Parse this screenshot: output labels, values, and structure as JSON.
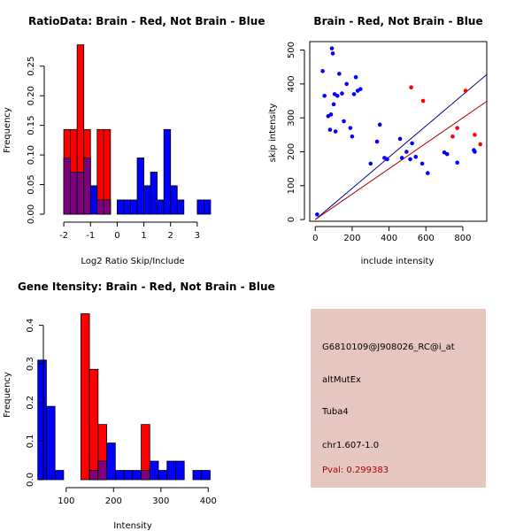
{
  "chart_data": [
    {
      "id": "ratio",
      "type": "histogram",
      "title": "RatioData: Brain - Red, Not Brain - Blue",
      "xlabel": "Log2 Ratio Skip/Include",
      "ylabel": "Frequency",
      "xlim": [
        -2.5,
        3.8
      ],
      "ylim": [
        0,
        0.29
      ],
      "xticks": [
        -2,
        -1,
        0,
        1,
        2,
        3
      ],
      "yticks": [
        0.0,
        0.05,
        0.1,
        0.15,
        0.2,
        0.25
      ],
      "ytick_labels": [
        "0.00",
        "0.05",
        "0.10",
        "0.15",
        "0.20",
        "0.25"
      ],
      "bin_width": 0.25,
      "series": [
        {
          "name": "Not Brain",
          "color": "#0000ff",
          "bins": [
            [
              -2.0,
              0.095
            ],
            [
              -1.75,
              0.071
            ],
            [
              -1.5,
              0.071
            ],
            [
              -1.25,
              0.095
            ],
            [
              -1.0,
              0.048
            ],
            [
              -0.75,
              0.024
            ],
            [
              -0.5,
              0.024
            ],
            [
              0.0,
              0.024
            ],
            [
              0.25,
              0.024
            ],
            [
              0.5,
              0.024
            ],
            [
              0.75,
              0.095
            ],
            [
              1.0,
              0.048
            ],
            [
              1.25,
              0.071
            ],
            [
              1.5,
              0.024
            ],
            [
              1.75,
              0.143
            ],
            [
              2.0,
              0.048
            ],
            [
              2.25,
              0.024
            ],
            [
              3.0,
              0.024
            ],
            [
              3.25,
              0.024
            ]
          ]
        },
        {
          "name": "Brain",
          "color": "#ff0000",
          "bins": [
            [
              -2.0,
              0.143
            ],
            [
              -1.75,
              0.143
            ],
            [
              -1.5,
              0.286
            ],
            [
              -1.25,
              0.143
            ],
            [
              -0.75,
              0.143
            ],
            [
              -0.5,
              0.143
            ]
          ]
        }
      ]
    },
    {
      "id": "scatter",
      "type": "scatter",
      "title": "Brain - Red, Not Brain - Blue",
      "xlabel": "include intensity",
      "ylabel": "skip intensity",
      "xlim": [
        -30,
        930
      ],
      "ylim": [
        -5,
        525
      ],
      "xticks": [
        0,
        200,
        400,
        600,
        800
      ],
      "yticks": [
        0,
        100,
        200,
        300,
        400,
        500
      ],
      "series": [
        {
          "name": "Not Brain",
          "color": "#0000ff",
          "points": [
            [
              10,
              15
            ],
            [
              40,
              438
            ],
            [
              50,
              365
            ],
            [
              70,
              305
            ],
            [
              80,
              265
            ],
            [
              85,
              310
            ],
            [
              90,
              505
            ],
            [
              95,
              490
            ],
            [
              100,
              340
            ],
            [
              105,
              370
            ],
            [
              110,
              260
            ],
            [
              120,
              365
            ],
            [
              130,
              430
            ],
            [
              145,
              372
            ],
            [
              155,
              290
            ],
            [
              170,
              400
            ],
            [
              190,
              270
            ],
            [
              200,
              245
            ],
            [
              210,
              370
            ],
            [
              220,
              420
            ],
            [
              230,
              380
            ],
            [
              245,
              385
            ],
            [
              300,
              165
            ],
            [
              335,
              230
            ],
            [
              350,
              280
            ],
            [
              375,
              182
            ],
            [
              390,
              178
            ],
            [
              460,
              238
            ],
            [
              470,
              182
            ],
            [
              495,
              200
            ],
            [
              515,
              178
            ],
            [
              525,
              225
            ],
            [
              545,
              185
            ],
            [
              580,
              165
            ],
            [
              610,
              137
            ],
            [
              700,
              198
            ],
            [
              715,
              193
            ],
            [
              770,
              168
            ],
            [
              860,
              205
            ],
            [
              865,
              200
            ]
          ]
        },
        {
          "name": "Brain",
          "color": "#ff0000",
          "points": [
            [
              520,
              390
            ],
            [
              585,
              350
            ],
            [
              745,
              245
            ],
            [
              770,
              270
            ],
            [
              815,
              380
            ],
            [
              865,
              250
            ],
            [
              895,
              222
            ]
          ]
        }
      ],
      "lines": [
        {
          "name": "Not Brain fit",
          "color": "#00008b",
          "slope": 0.46
        },
        {
          "name": "Brain fit",
          "color": "#b00000",
          "slope": 0.375
        }
      ]
    },
    {
      "id": "intensity",
      "type": "histogram",
      "title": "Gene Itensity: Brain - Red, Not Brain - Blue",
      "xlabel": "Intensity",
      "ylabel": "Frequency",
      "xlim": [
        35,
        420
      ],
      "ylim": [
        0,
        0.445
      ],
      "xticks": [
        100,
        200,
        300,
        400
      ],
      "yticks": [
        0.0,
        0.1,
        0.2,
        0.3,
        0.4
      ],
      "ytick_labels": [
        "0.0",
        "0.1",
        "0.2",
        "0.3",
        "0.4"
      ],
      "bin_width": 18.2,
      "series": [
        {
          "name": "Not Brain",
          "color": "#0000ff",
          "bins": [
            [
              40,
              0.31
            ],
            [
              58.2,
              0.19
            ],
            [
              76.4,
              0.024
            ],
            [
              149.2,
              0.024
            ],
            [
              167.4,
              0.048
            ],
            [
              185.6,
              0.095
            ],
            [
              203.8,
              0.024
            ],
            [
              222,
              0.024
            ],
            [
              240.2,
              0.024
            ],
            [
              258.4,
              0.024
            ],
            [
              276.6,
              0.048
            ],
            [
              294.8,
              0.024
            ],
            [
              313,
              0.048
            ],
            [
              331.2,
              0.048
            ],
            [
              367.6,
              0.024
            ],
            [
              385.8,
              0.024
            ]
          ]
        },
        {
          "name": "Brain",
          "color": "#ff0000",
          "bins": [
            [
              131,
              0.43
            ],
            [
              149.2,
              0.286
            ],
            [
              167.4,
              0.143
            ],
            [
              258.4,
              0.143
            ]
          ]
        }
      ]
    }
  ],
  "info": {
    "probe": "G6810109@J908026_RC@i_at",
    "event_type": "altMutEx",
    "gene": "Tuba4",
    "location": "chr1.607-1.0",
    "pval": "Pval: 0.299383"
  },
  "colors": {
    "brain": "#ff0000",
    "not_brain": "#0000ff",
    "overlap": "#7f007f",
    "panel_bg": "#e6c7bf"
  }
}
